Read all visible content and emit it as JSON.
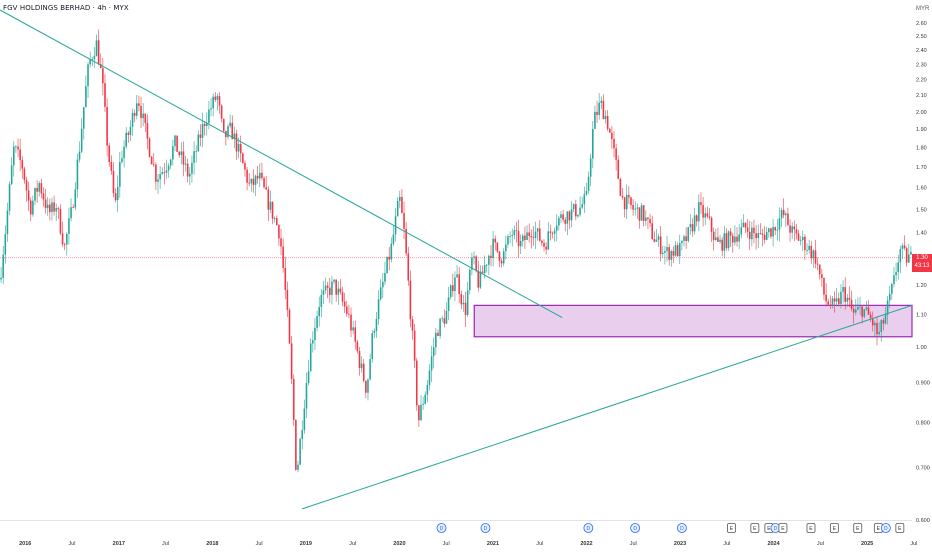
{
  "header": {
    "title": "FGV HOLDINGS BERHAD · 4h · MYX",
    "currency": "MYR"
  },
  "price_tag": {
    "price": "1.30",
    "countdown": "43:13"
  },
  "colors": {
    "up": "#26a69a",
    "down": "#f23645",
    "trendline": "#26a69a",
    "zone_stroke": "#9c27b0",
    "zone_fill": "#e1bee7",
    "price_line": "#f23645"
  },
  "chart_data": {
    "type": "candlestick",
    "title": "FGV HOLDINGS BERHAD · 4h · MYX",
    "ylabel": "MYR",
    "y_scale": "log",
    "ylim": [
      0.6,
      2.7
    ],
    "y_ticks": [
      "2.60",
      "2.50",
      "2.40",
      "2.30",
      "2.20",
      "2.10",
      "2.00",
      "1.90",
      "1.80",
      "1.70",
      "1.60",
      "1.50",
      "1.40",
      "1.30",
      "1.20",
      "1.10",
      "1.00",
      "0.900",
      "0.800",
      "0.700",
      "0.600"
    ],
    "x_ticks": [
      "2016",
      "Jul",
      "2017",
      "Jul",
      "2018",
      "Jul",
      "2019",
      "Jul",
      "2020",
      "Jul",
      "2021",
      "Jul",
      "2022",
      "Jul",
      "2023",
      "Jul",
      "2024",
      "Jul",
      "2025",
      "Jul"
    ],
    "x_tick_dates": [
      2016.0,
      2016.5,
      2017.0,
      2017.5,
      2018.0,
      2018.5,
      2019.0,
      2019.5,
      2020.0,
      2020.5,
      2021.0,
      2021.5,
      2022.0,
      2022.5,
      2023.0,
      2023.5,
      2024.0,
      2024.5,
      2025.0,
      2025.5
    ],
    "xlim": [
      2015.73,
      2025.48
    ],
    "price_path": [
      {
        "t": 2015.73,
        "p": 1.22
      },
      {
        "t": 2015.8,
        "p": 1.45
      },
      {
        "t": 2015.88,
        "p": 1.8
      },
      {
        "t": 2015.97,
        "p": 1.7
      },
      {
        "t": 2016.05,
        "p": 1.5
      },
      {
        "t": 2016.15,
        "p": 1.62
      },
      {
        "t": 2016.25,
        "p": 1.48
      },
      {
        "t": 2016.33,
        "p": 1.52
      },
      {
        "t": 2016.42,
        "p": 1.34
      },
      {
        "t": 2016.5,
        "p": 1.5
      },
      {
        "t": 2016.58,
        "p": 1.8
      },
      {
        "t": 2016.68,
        "p": 2.3
      },
      {
        "t": 2016.76,
        "p": 2.45
      },
      {
        "t": 2016.82,
        "p": 2.2
      },
      {
        "t": 2016.88,
        "p": 1.8
      },
      {
        "t": 2016.96,
        "p": 1.5
      },
      {
        "t": 2017.02,
        "p": 1.75
      },
      {
        "t": 2017.12,
        "p": 1.9
      },
      {
        "t": 2017.2,
        "p": 2.1
      },
      {
        "t": 2017.3,
        "p": 1.85
      },
      {
        "t": 2017.4,
        "p": 1.65
      },
      {
        "t": 2017.5,
        "p": 1.7
      },
      {
        "t": 2017.6,
        "p": 1.82
      },
      {
        "t": 2017.75,
        "p": 1.65
      },
      {
        "t": 2017.92,
        "p": 1.95
      },
      {
        "t": 2018.05,
        "p": 2.1
      },
      {
        "t": 2018.12,
        "p": 1.85
      },
      {
        "t": 2018.2,
        "p": 1.9
      },
      {
        "t": 2018.3,
        "p": 1.75
      },
      {
        "t": 2018.4,
        "p": 1.6
      },
      {
        "t": 2018.5,
        "p": 1.65
      },
      {
        "t": 2018.58,
        "p": 1.55
      },
      {
        "t": 2018.72,
        "p": 1.4
      },
      {
        "t": 2018.8,
        "p": 1.1
      },
      {
        "t": 2018.9,
        "p": 0.68
      },
      {
        "t": 2018.96,
        "p": 0.8
      },
      {
        "t": 2019.05,
        "p": 1.0
      },
      {
        "t": 2019.15,
        "p": 1.15
      },
      {
        "t": 2019.3,
        "p": 1.2
      },
      {
        "t": 2019.45,
        "p": 1.1
      },
      {
        "t": 2019.58,
        "p": 0.95
      },
      {
        "t": 2019.65,
        "p": 0.88
      },
      {
        "t": 2019.72,
        "p": 1.05
      },
      {
        "t": 2019.82,
        "p": 1.2
      },
      {
        "t": 2019.92,
        "p": 1.35
      },
      {
        "t": 2020.0,
        "p": 1.55
      },
      {
        "t": 2020.05,
        "p": 1.4
      },
      {
        "t": 2020.12,
        "p": 1.1
      },
      {
        "t": 2020.2,
        "p": 0.8
      },
      {
        "t": 2020.3,
        "p": 0.9
      },
      {
        "t": 2020.4,
        "p": 1.05
      },
      {
        "t": 2020.5,
        "p": 1.1
      },
      {
        "t": 2020.6,
        "p": 1.25
      },
      {
        "t": 2020.7,
        "p": 1.1
      },
      {
        "t": 2020.78,
        "p": 1.3
      },
      {
        "t": 2020.85,
        "p": 1.2
      },
      {
        "t": 2020.92,
        "p": 1.28
      },
      {
        "t": 2021.0,
        "p": 1.35
      },
      {
        "t": 2021.1,
        "p": 1.3
      },
      {
        "t": 2021.2,
        "p": 1.4
      },
      {
        "t": 2021.3,
        "p": 1.35
      },
      {
        "t": 2021.42,
        "p": 1.42
      },
      {
        "t": 2021.55,
        "p": 1.35
      },
      {
        "t": 2021.67,
        "p": 1.45
      },
      {
        "t": 2021.8,
        "p": 1.48
      },
      {
        "t": 2021.92,
        "p": 1.5
      },
      {
        "t": 2022.0,
        "p": 1.55
      },
      {
        "t": 2022.08,
        "p": 1.95
      },
      {
        "t": 2022.15,
        "p": 2.05
      },
      {
        "t": 2022.22,
        "p": 1.95
      },
      {
        "t": 2022.3,
        "p": 1.75
      },
      {
        "t": 2022.38,
        "p": 1.55
      },
      {
        "t": 2022.5,
        "p": 1.5
      },
      {
        "t": 2022.6,
        "p": 1.48
      },
      {
        "t": 2022.72,
        "p": 1.38
      },
      {
        "t": 2022.85,
        "p": 1.32
      },
      {
        "t": 2023.0,
        "p": 1.33
      },
      {
        "t": 2023.1,
        "p": 1.4
      },
      {
        "t": 2023.2,
        "p": 1.5
      },
      {
        "t": 2023.3,
        "p": 1.45
      },
      {
        "t": 2023.4,
        "p": 1.35
      },
      {
        "t": 2023.55,
        "p": 1.38
      },
      {
        "t": 2023.7,
        "p": 1.42
      },
      {
        "t": 2023.85,
        "p": 1.38
      },
      {
        "t": 2024.0,
        "p": 1.42
      },
      {
        "t": 2024.1,
        "p": 1.48
      },
      {
        "t": 2024.2,
        "p": 1.4
      },
      {
        "t": 2024.35,
        "p": 1.35
      },
      {
        "t": 2024.45,
        "p": 1.3
      },
      {
        "t": 2024.55,
        "p": 1.15
      },
      {
        "t": 2024.65,
        "p": 1.12
      },
      {
        "t": 2024.75,
        "p": 1.18
      },
      {
        "t": 2024.85,
        "p": 1.1
      },
      {
        "t": 2024.95,
        "p": 1.12
      },
      {
        "t": 2025.05,
        "p": 1.08
      },
      {
        "t": 2025.12,
        "p": 1.03
      },
      {
        "t": 2025.2,
        "p": 1.1
      },
      {
        "t": 2025.28,
        "p": 1.2
      },
      {
        "t": 2025.35,
        "p": 1.33
      },
      {
        "t": 2025.42,
        "p": 1.3
      },
      {
        "t": 2025.48,
        "p": 1.3
      }
    ],
    "annotations": {
      "trendlines": [
        {
          "from": {
            "t": 2015.73,
            "p": 2.7
          },
          "to": {
            "t": 2021.74,
            "p": 1.09
          }
        },
        {
          "from": {
            "t": 2018.96,
            "p": 0.62
          },
          "to": {
            "t": 2025.48,
            "p": 1.13
          }
        }
      ],
      "zone": {
        "t_start": 2020.8,
        "t_end": 2025.48,
        "p_low": 1.03,
        "p_high": 1.13
      },
      "last_price": 1.3
    },
    "event_markers": [
      {
        "t": 2020.45,
        "label": "D"
      },
      {
        "t": 2020.92,
        "label": "D"
      },
      {
        "t": 2022.02,
        "label": "D"
      },
      {
        "t": 2022.52,
        "label": "D"
      },
      {
        "t": 2023.02,
        "label": "D"
      },
      {
        "t": 2023.55,
        "label": "E"
      },
      {
        "t": 2023.8,
        "label": "E"
      },
      {
        "t": 2023.95,
        "label": "E"
      },
      {
        "t": 2024.02,
        "label": "D"
      },
      {
        "t": 2024.1,
        "label": "E"
      },
      {
        "t": 2024.4,
        "label": "E"
      },
      {
        "t": 2024.65,
        "label": "E"
      },
      {
        "t": 2024.9,
        "label": "E"
      },
      {
        "t": 2025.12,
        "label": "E"
      },
      {
        "t": 2025.2,
        "label": "D"
      },
      {
        "t": 2025.35,
        "label": "E"
      }
    ]
  }
}
